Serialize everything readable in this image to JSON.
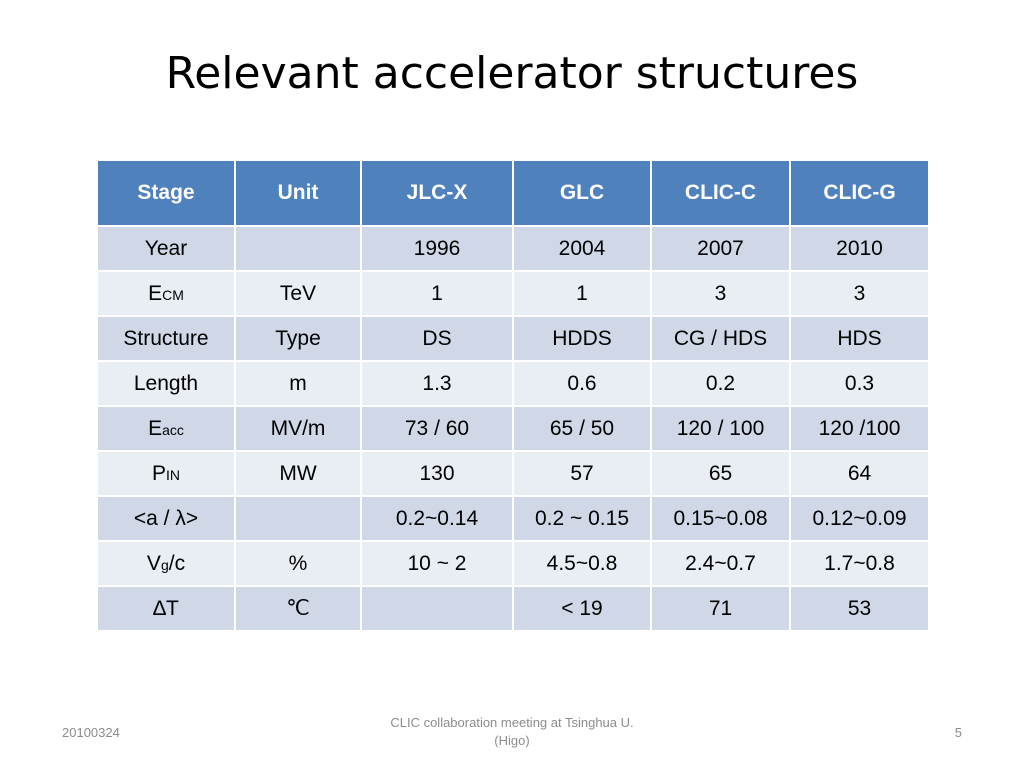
{
  "slide": {
    "title": "Relevant accelerator structures"
  },
  "table": {
    "headers": [
      "Stage",
      "Unit",
      "JLC-X",
      "GLC",
      "CLIC-C",
      "CLIC-G"
    ],
    "rows": [
      {
        "stage": {
          "base": "Year",
          "sub": ""
        },
        "unit": "",
        "values": [
          "1996",
          "2004",
          "2007",
          "2010"
        ]
      },
      {
        "stage": {
          "base": "E",
          "sub": "CM"
        },
        "unit": "TeV",
        "values": [
          "1",
          "1",
          "3",
          "3"
        ]
      },
      {
        "stage": {
          "base": "Structure",
          "sub": ""
        },
        "unit": "Type",
        "values": [
          "DS",
          "HDDS",
          "CG / HDS",
          "HDS"
        ]
      },
      {
        "stage": {
          "base": "Length",
          "sub": ""
        },
        "unit": "m",
        "values": [
          "1.3",
          "0.6",
          "0.2",
          "0.3"
        ]
      },
      {
        "stage": {
          "base": "E",
          "sub": "acc"
        },
        "unit": "MV/m",
        "values": [
          "73 / 60",
          "65 / 50",
          "120 / 100",
          "120 /100"
        ]
      },
      {
        "stage": {
          "base": "P",
          "sub": "IN"
        },
        "unit": "MW",
        "values": [
          "130",
          "57",
          "65",
          "64"
        ]
      },
      {
        "stage": {
          "base": "<a / λ>",
          "sub": ""
        },
        "unit": "",
        "values": [
          "0.2~0.14",
          "0.2 ~ 0.15",
          "0.15~0.08",
          "0.12~0.09"
        ]
      },
      {
        "stage": {
          "base": "V",
          "sub": "g",
          "suffix": "/c"
        },
        "unit": "%",
        "values": [
          "10 ~ 2",
          "4.5~0.8",
          "2.4~0.7",
          "1.7~0.8"
        ]
      },
      {
        "stage": {
          "base": "∆T",
          "sub": ""
        },
        "unit": "℃",
        "values": [
          "",
          "< 19",
          "71",
          "53"
        ]
      }
    ]
  },
  "footer": {
    "date": "20100324",
    "center_line1": "CLIC collaboration meeting at Tsinghua U.",
    "center_line2": "(Higo)",
    "page": "5"
  },
  "colors": {
    "header_bg": "#4f81bd",
    "row_dark": "#d0d8e8",
    "row_light": "#e9edf4"
  }
}
